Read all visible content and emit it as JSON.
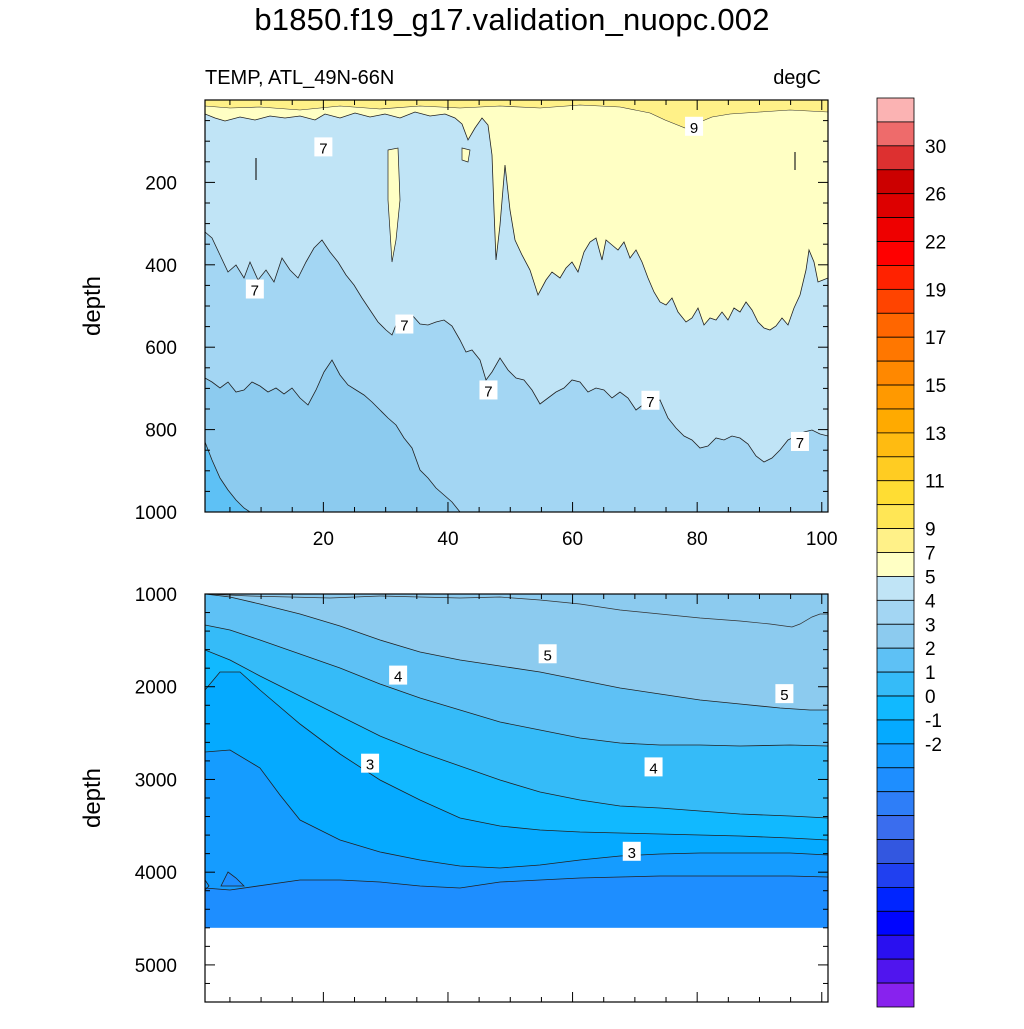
{
  "figure": {
    "title": "b1850.f19_g17.validation_nuopc.002",
    "left_label": "TEMP, ATL_49N-66N",
    "right_label": "degC"
  },
  "chart_data": [
    {
      "type": "contour",
      "panel": "upper",
      "ylabel": "depth",
      "xlim": [
        1,
        101
      ],
      "ylim": [
        1000,
        0
      ],
      "x_ticks": [
        20,
        40,
        60,
        80,
        100
      ],
      "y_ticks": [
        200,
        400,
        600,
        800,
        1000
      ],
      "contour_labels": [
        {
          "text": "9",
          "x": 79.5,
          "depth": 65
        },
        {
          "text": "7",
          "x": 20,
          "depth": 115
        },
        {
          "text": "7",
          "x": 9,
          "depth": 460
        },
        {
          "text": "7",
          "x": 33,
          "depth": 545
        },
        {
          "text": "7",
          "x": 46.5,
          "depth": 705
        },
        {
          "text": "7",
          "x": 72.5,
          "depth": 730
        },
        {
          "text": "7",
          "x": 96.5,
          "depth": 830
        }
      ]
    },
    {
      "type": "contour",
      "panel": "lower",
      "ylabel": "depth",
      "xlim": [
        1,
        101
      ],
      "ylim": [
        5400,
        1000
      ],
      "y_ticks": [
        1000,
        2000,
        3000,
        4000,
        5000
      ],
      "contour_labels": [
        {
          "text": "5",
          "x": 56,
          "depth": 1650
        },
        {
          "text": "5",
          "x": 94,
          "depth": 2080
        },
        {
          "text": "4",
          "x": 32,
          "depth": 1880
        },
        {
          "text": "4",
          "x": 73,
          "depth": 2870
        },
        {
          "text": "3",
          "x": 27.5,
          "depth": 2830
        },
        {
          "text": "3",
          "x": 69.5,
          "depth": 3780
        }
      ],
      "data_bottom_depth": 4600
    }
  ],
  "colorbar": {
    "tick_labels": [
      "30",
      "26",
      "22",
      "19",
      "17",
      "15",
      "13",
      "11",
      "9",
      "7",
      "5",
      "4",
      "3",
      "2",
      "1",
      "0",
      "-1",
      "-2"
    ],
    "colors": [
      "#fbb3b3",
      "#ee6b6b",
      "#dd3030",
      "#cc0000",
      "#dd0000",
      "#ee0000",
      "#ff0000",
      "#ff2200",
      "#ff4400",
      "#ff6600",
      "#ff7700",
      "#ff8800",
      "#ff9900",
      "#ffaa00",
      "#ffbb11",
      "#ffcc22",
      "#ffdd33",
      "#ffe655",
      "#fff188",
      "#ffffc4",
      "#c0e4f6",
      "#a3d6f3",
      "#8ccbef",
      "#5ec1f5",
      "#35bbf8",
      "#11b9ff",
      "#05aaff",
      "#159cff",
      "#1e8eff",
      "#2e7ef8",
      "#3a6dee",
      "#3357e0",
      "#2040f0",
      "#0025ff",
      "#0005ff",
      "#2a10f0",
      "#5015ee",
      "#8822ee"
    ]
  }
}
